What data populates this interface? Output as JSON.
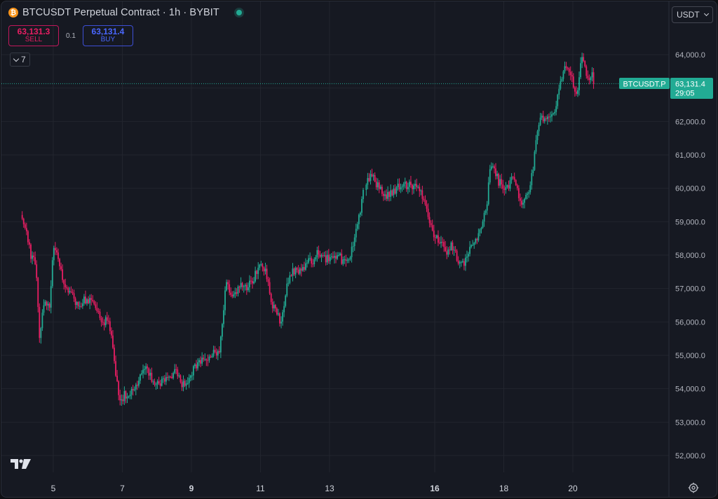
{
  "header": {
    "title": "BTCUSDT Perpetual Contract · 1h · BYBIT",
    "coin_icon": "bitcoin-icon",
    "coin_glyph": "₿",
    "status": "market-open-dot"
  },
  "trade": {
    "sell_price": "63,131.3",
    "sell_label": "SELL",
    "spread": "0.1",
    "buy_price": "63,131.4",
    "buy_label": "BUY"
  },
  "indicators": {
    "count": "7"
  },
  "currency": {
    "selected": "USDT"
  },
  "price_label": {
    "symbol": "BTCUSDT.P",
    "price": "63,131.4",
    "countdown": "29:05"
  },
  "colors": {
    "background": "#161922",
    "grid": "#22252e",
    "up": "#22ab94",
    "down": "#e91e63",
    "text": "#d1d4dc",
    "axis_text": "#b2b5be",
    "price_label_bg": "#22ab94",
    "sell": "#e91e63",
    "buy": "#4a67ff"
  },
  "chart_data": {
    "type": "candlestick",
    "ylim": [
      51600,
      64600
    ],
    "yticks": [
      52000,
      53000,
      54000,
      55000,
      56000,
      57000,
      58000,
      59000,
      60000,
      61000,
      62000,
      63000,
      64000
    ],
    "ytick_labels": [
      "52,000.0",
      "53,000.0",
      "54,000.0",
      "55,000.0",
      "56,000.0",
      "57,000.0",
      "58,000.0",
      "59,000.0",
      "60,000.0",
      "61,000.0",
      "62,000.0",
      "63,000.0",
      "64,000.0"
    ],
    "xticks": [
      {
        "day": 5,
        "label": "5",
        "bold": false
      },
      {
        "day": 7,
        "label": "7",
        "bold": false
      },
      {
        "day": 9,
        "label": "9",
        "bold": true
      },
      {
        "day": 11,
        "label": "11",
        "bold": false
      },
      {
        "day": 13,
        "label": "13",
        "bold": false
      },
      {
        "day": 16,
        "label": "16",
        "bold": true
      },
      {
        "day": 18,
        "label": "18",
        "bold": false
      },
      {
        "day": 20,
        "label": "20",
        "bold": false
      }
    ],
    "gap_after_day": 14,
    "close_path": [
      [
        4.1,
        59200
      ],
      [
        4.35,
        58000
      ],
      [
        4.5,
        57700
      ],
      [
        4.6,
        55600
      ],
      [
        4.75,
        56600
      ],
      [
        4.9,
        56500
      ],
      [
        5.0,
        58300
      ],
      [
        5.15,
        57900
      ],
      [
        5.25,
        57300
      ],
      [
        5.5,
        56900
      ],
      [
        5.75,
        56400
      ],
      [
        5.9,
        56700
      ],
      [
        6.2,
        56500
      ],
      [
        6.45,
        56000
      ],
      [
        6.6,
        56100
      ],
      [
        6.75,
        55000
      ],
      [
        6.85,
        54100
      ],
      [
        6.95,
        53500
      ],
      [
        7.05,
        53800
      ],
      [
        7.2,
        53900
      ],
      [
        7.5,
        54300
      ],
      [
        7.7,
        54600
      ],
      [
        7.9,
        54200
      ],
      [
        8.15,
        54200
      ],
      [
        8.35,
        54400
      ],
      [
        8.55,
        54500
      ],
      [
        8.75,
        54100
      ],
      [
        8.95,
        54300
      ],
      [
        9.1,
        54700
      ],
      [
        9.4,
        54900
      ],
      [
        9.65,
        55100
      ],
      [
        9.8,
        55100
      ],
      [
        10.0,
        57100
      ],
      [
        10.2,
        56800
      ],
      [
        10.4,
        57100
      ],
      [
        10.6,
        57000
      ],
      [
        10.8,
        57300
      ],
      [
        10.95,
        57700
      ],
      [
        11.15,
        57600
      ],
      [
        11.3,
        56600
      ],
      [
        11.5,
        56300
      ],
      [
        11.6,
        55900
      ],
      [
        11.75,
        57000
      ],
      [
        11.9,
        57500
      ],
      [
        12.0,
        57500
      ],
      [
        12.2,
        57600
      ],
      [
        12.35,
        57800
      ],
      [
        12.5,
        57800
      ],
      [
        12.65,
        58100
      ],
      [
        12.85,
        57900
      ],
      [
        13.05,
        57900
      ],
      [
        13.25,
        58000
      ],
      [
        13.4,
        57800
      ],
      [
        13.55,
        57800
      ],
      [
        13.75,
        58600
      ],
      [
        13.9,
        59400
      ],
      [
        14.0,
        60000
      ],
      [
        14.15,
        60500
      ],
      [
        14.25,
        60200
      ],
      [
        14.45,
        59900
      ],
      [
        14.6,
        59800
      ],
      [
        14.8,
        59900
      ],
      [
        15.0,
        60100
      ],
      [
        15.2,
        60100
      ],
      [
        15.4,
        60100
      ],
      [
        15.55,
        60000
      ],
      [
        15.75,
        59400
      ],
      [
        15.85,
        59000
      ],
      [
        16.0,
        58500
      ],
      [
        16.2,
        58400
      ],
      [
        16.35,
        58000
      ],
      [
        16.5,
        58300
      ],
      [
        16.65,
        57900
      ],
      [
        16.8,
        57700
      ],
      [
        16.95,
        58000
      ],
      [
        17.1,
        58300
      ],
      [
        17.3,
        58700
      ],
      [
        17.5,
        59400
      ],
      [
        17.6,
        60600
      ],
      [
        17.7,
        60700
      ],
      [
        17.85,
        60200
      ],
      [
        17.95,
        60100
      ],
      [
        18.1,
        60000
      ],
      [
        18.25,
        60400
      ],
      [
        18.4,
        59900
      ],
      [
        18.55,
        59500
      ],
      [
        18.7,
        59800
      ],
      [
        18.85,
        60600
      ],
      [
        19.0,
        62000
      ],
      [
        19.15,
        62100
      ],
      [
        19.3,
        62000
      ],
      [
        19.45,
        62200
      ],
      [
        19.6,
        63000
      ],
      [
        19.75,
        63600
      ],
      [
        19.9,
        63500
      ],
      [
        20.05,
        63000
      ],
      [
        20.15,
        62900
      ],
      [
        20.25,
        63900
      ],
      [
        20.35,
        63600
      ],
      [
        20.45,
        63300
      ],
      [
        20.55,
        63500
      ],
      [
        20.62,
        63131
      ]
    ]
  }
}
